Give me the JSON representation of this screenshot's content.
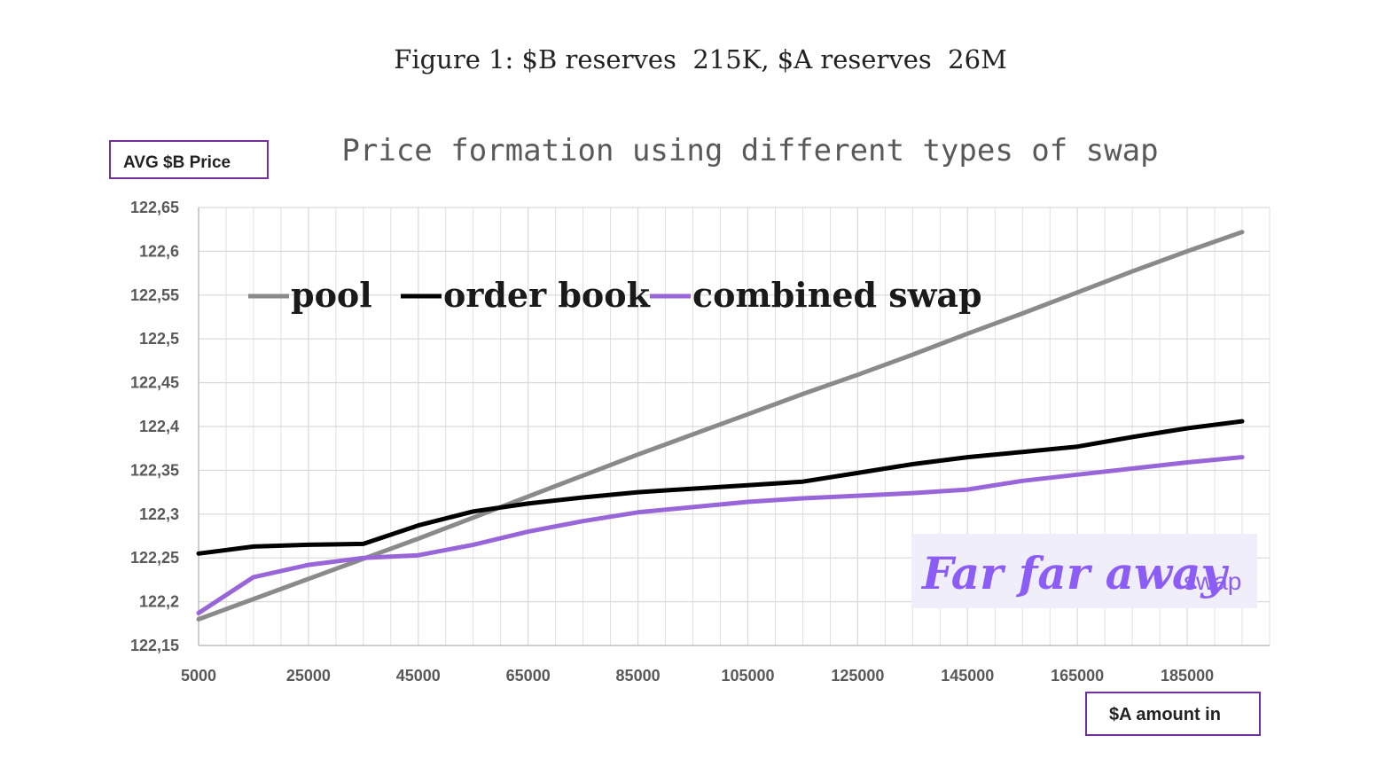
{
  "figure_caption": "Figure 1: $B reserves  215K, $A reserves  26M",
  "colors": {
    "pool": "#8a8a8a",
    "order_book": "#000000",
    "combined_swap": "#9966d9",
    "grid": "#d9d9d9",
    "box_border": "#7030a0",
    "watermark_text": "#8b5cf6",
    "watermark_bg": "#f1eefc"
  },
  "watermark": {
    "main": "Far far away",
    "suffix": "swap"
  },
  "chart_data": {
    "type": "line",
    "title": "Price formation using different types of swap",
    "xlabel": "$A amount in",
    "ylabel": "AVG $B Price",
    "xlim": [
      5000,
      200000
    ],
    "ylim": [
      122.15,
      122.65
    ],
    "x_ticks": [
      5000,
      25000,
      45000,
      65000,
      85000,
      105000,
      125000,
      145000,
      165000,
      185000
    ],
    "y_ticks": [
      122.15,
      122.2,
      122.25,
      122.3,
      122.35,
      122.4,
      122.45,
      122.5,
      122.55,
      122.6,
      122.65
    ],
    "y_tick_labels": [
      "122,15",
      "122,2",
      "122,25",
      "122,3",
      "122,35",
      "122,4",
      "122,45",
      "122,5",
      "122,55",
      "122,6",
      "122,65"
    ],
    "grid": true,
    "legend_position": "top-left",
    "x": [
      5000,
      15000,
      25000,
      35000,
      45000,
      55000,
      65000,
      75000,
      85000,
      95000,
      105000,
      115000,
      125000,
      135000,
      145000,
      155000,
      165000,
      175000,
      185000,
      195000
    ],
    "series": [
      {
        "name": "pool",
        "values": [
          122.18,
          122.203,
          122.226,
          122.249,
          122.272,
          122.296,
          122.32,
          122.344,
          122.368,
          122.391,
          122.414,
          122.437,
          122.459,
          122.482,
          122.506,
          122.529,
          122.553,
          122.577,
          122.6,
          122.622
        ]
      },
      {
        "name": "order book",
        "values": [
          122.255,
          122.263,
          122.265,
          122.266,
          122.287,
          122.303,
          122.312,
          122.319,
          122.325,
          122.329,
          122.333,
          122.337,
          122.347,
          122.357,
          122.365,
          122.371,
          122.377,
          122.388,
          122.398,
          122.406
        ]
      },
      {
        "name": "combined swap",
        "values": [
          122.187,
          122.228,
          122.242,
          122.25,
          122.253,
          122.265,
          122.28,
          122.292,
          122.302,
          122.308,
          122.314,
          122.318,
          122.321,
          122.324,
          122.328,
          122.338,
          122.345,
          122.352,
          122.359,
          122.365
        ]
      }
    ]
  }
}
